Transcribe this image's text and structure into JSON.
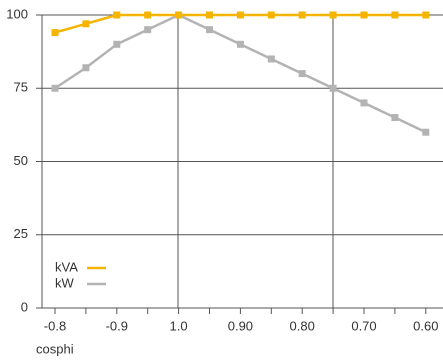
{
  "chart_data": {
    "type": "line",
    "xlabel": "cosphi",
    "categories": [
      "-0.8",
      null,
      "-0.9",
      null,
      "1.0",
      null,
      "0.90",
      null,
      "0.80",
      null,
      "0.70",
      null,
      "0.60"
    ],
    "series": [
      {
        "name": "kVA",
        "color": "#f5b400",
        "values": [
          94,
          97,
          100,
          100,
          100,
          100,
          100,
          100,
          100,
          100,
          100,
          100,
          100
        ]
      },
      {
        "name": "kW",
        "color": "#b3b3b3",
        "values": [
          75,
          82,
          90,
          95,
          100,
          95,
          90,
          85,
          80,
          75,
          70,
          65,
          60
        ]
      }
    ],
    "ylim": [
      0,
      100
    ],
    "yticks": [
      0,
      25,
      50,
      75,
      100
    ],
    "grid": true
  }
}
